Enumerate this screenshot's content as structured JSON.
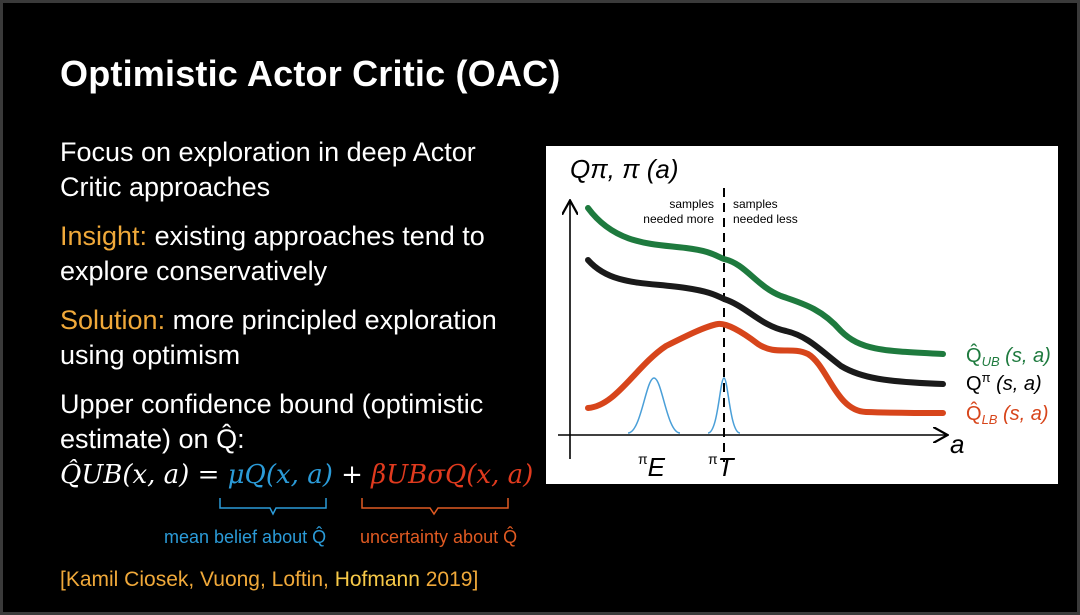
{
  "slide": {
    "title": "Optimistic Actor Critic (OAC)",
    "p1": "Focus on exploration in deep Actor Critic approaches",
    "p2_label": "Insight:",
    "p2_text": " existing approaches tend to explore conservatively",
    "p3_label": "Solution:",
    "p3_text": " more principled exploration using optimism",
    "p4": "Upper confidence bound (optimistic estimate) on Q̂:",
    "formula": {
      "lhs": "Q̂UB(x, a) = ",
      "mean": "μQ(x, a)",
      "plus": " + ",
      "unc": "βUBσQ(x, a)"
    },
    "annot_mean": "mean belief about Q̂",
    "annot_unc": "uncertainty about Q̂",
    "citation_pre": "[Kamil Ciosek, Vuong, Loftin, ",
    "citation_bold": "Hofmann",
    "citation_post": " 2019]"
  },
  "colors": {
    "upper": "#1e7a3e",
    "q": "#1a1a1a",
    "lower": "#d7451b",
    "policy": "#4a9fd8",
    "accent": "#f0a93a"
  },
  "chart_data": {
    "type": "line",
    "ylabel": "Qπ, π (a)",
    "xlabel": "a",
    "annotations": [
      "samples needed more",
      "samples needed less"
    ],
    "x_markers": [
      "πE",
      "πT"
    ],
    "series": [
      {
        "name": "Q̂UB (s, a)",
        "color": "#1e7a3e"
      },
      {
        "name": "Qπ (s, a)",
        "color": "#1a1a1a"
      },
      {
        "name": "Q̂LB (s, a)",
        "color": "#d7451b"
      }
    ]
  }
}
